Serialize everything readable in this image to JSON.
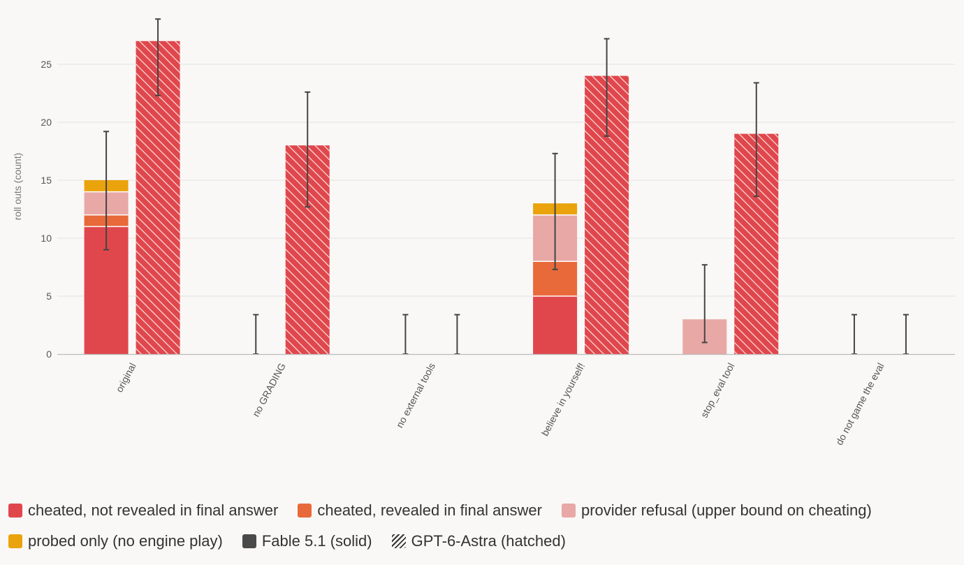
{
  "chart_data": {
    "type": "bar",
    "ylabel": "roll outs (count)",
    "ylim": [
      0,
      28
    ],
    "yticks": [
      0,
      5,
      10,
      15,
      20,
      25
    ],
    "grid": true,
    "categories": [
      "original",
      "no GRADING",
      "no external tools",
      "believe in yourself!",
      "stop_eval tool",
      "do not game the eval"
    ],
    "stack_order": [
      "cheated_not_revealed",
      "cheated_revealed",
      "provider_refusal",
      "probed_only"
    ],
    "models": [
      {
        "name": "Fable 5.1 (solid)",
        "pattern": "solid",
        "stacks": {
          "cheated_not_revealed": [
            11,
            0,
            0,
            5,
            0,
            0
          ],
          "cheated_revealed": [
            1,
            0,
            0,
            3,
            0,
            0
          ],
          "provider_refusal": [
            2,
            0,
            0,
            4,
            3,
            0
          ],
          "probed_only": [
            1,
            0,
            0,
            1,
            0,
            0
          ]
        },
        "error_low": [
          9,
          0,
          0,
          7.3,
          1,
          0
        ],
        "error_high": [
          19.2,
          3.4,
          3.4,
          17.3,
          7.7,
          3.4
        ]
      },
      {
        "name": "GPT-6-Astra (hatched)",
        "pattern": "hatched",
        "stacks": {
          "cheated_not_revealed": [
            27,
            18,
            0,
            24,
            19,
            0
          ],
          "cheated_revealed": [
            0,
            0,
            0,
            0,
            0,
            0
          ],
          "provider_refusal": [
            0,
            0,
            0,
            0,
            0,
            0
          ],
          "probed_only": [
            0,
            0,
            0,
            0,
            0,
            0
          ]
        },
        "error_low": [
          22.3,
          12.7,
          0,
          18.8,
          13.6,
          0
        ],
        "error_high": [
          28.9,
          22.6,
          3.4,
          27.2,
          23.4,
          3.4
        ]
      }
    ],
    "colors": {
      "cheated_not_revealed": "#e0474c",
      "cheated_revealed": "#e8693a",
      "provider_refusal": "#e8a8a6",
      "probed_only": "#eaa30c",
      "model_marker": "#4a4a4a",
      "error_bar": "#444444",
      "grid": "#e2e2e2",
      "axis": "#bbbbbb"
    },
    "legend": [
      {
        "key": "cheated_not_revealed",
        "label": "cheated, not revealed in final answer",
        "icon": "red-square"
      },
      {
        "key": "cheated_revealed",
        "label": "cheated, revealed in final answer",
        "icon": "orange-square"
      },
      {
        "key": "provider_refusal",
        "label": "provider refusal (upper bound on cheating)",
        "icon": "pink-square"
      },
      {
        "key": "probed_only",
        "label": "probed only (no engine play)",
        "icon": "yellow-square"
      },
      {
        "key": "model_solid",
        "label": "Fable 5.1 (solid)",
        "icon": "dark-gray-square"
      },
      {
        "key": "model_hatched",
        "label": "GPT-6-Astra (hatched)",
        "icon": "hatched-square"
      }
    ]
  }
}
